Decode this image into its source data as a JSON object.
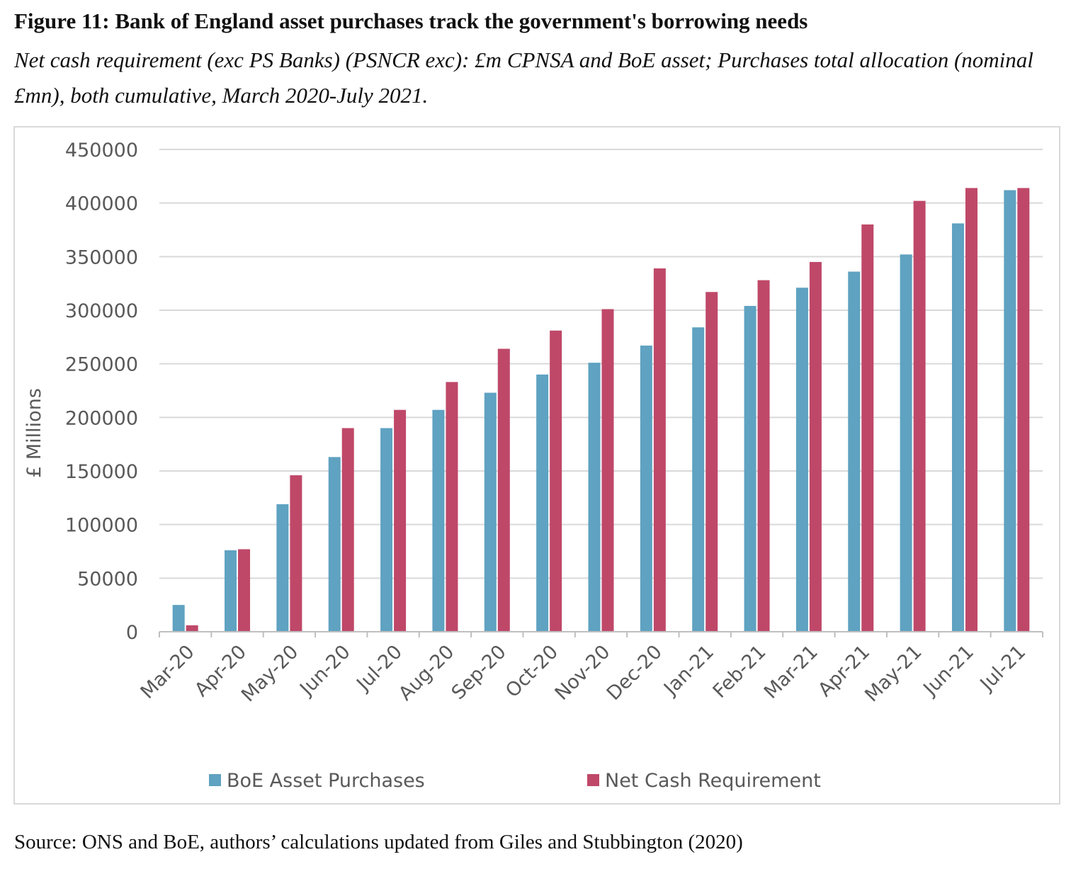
{
  "title": "Figure 11: Bank of England asset purchases track the government's borrowing needs",
  "subtitle": "Net cash requirement (exc PS Banks) (PSNCR exc): £m CPNSA and BoE asset; Purchases total allocation (nominal £mn), both cumulative, March 2020-July 2021.",
  "source": "Source: ONS and BoE, authors’ calculations updated from Giles and Stubbington (2020)",
  "chart_data": {
    "type": "bar",
    "ylabel": "£ Millions",
    "xlabel": "",
    "ylim": [
      0,
      450000
    ],
    "yticks": [
      0,
      50000,
      100000,
      150000,
      200000,
      250000,
      300000,
      350000,
      400000,
      450000
    ],
    "grid": true,
    "legend_position": "bottom",
    "categories": [
      "Mar-20",
      "Apr-20",
      "May-20",
      "Jun-20",
      "Jul-20",
      "Aug-20",
      "Sep-20",
      "Oct-20",
      "Nov-20",
      "Dec-20",
      "Jan-21",
      "Feb-21",
      "Mar-21",
      "Apr-21",
      "May-21",
      "Jun-21",
      "Jul-21"
    ],
    "series": [
      {
        "name": "BoE Asset Purchases",
        "color": "#5fa2c1",
        "values": [
          25000,
          76000,
          119000,
          163000,
          190000,
          207000,
          223000,
          240000,
          251000,
          267000,
          284000,
          304000,
          321000,
          336000,
          352000,
          381000,
          412000
        ]
      },
      {
        "name": "Net Cash Requirement",
        "color": "#bf4869",
        "values": [
          6000,
          77000,
          146000,
          190000,
          207000,
          233000,
          264000,
          281000,
          301000,
          339000,
          317000,
          328000,
          345000,
          380000,
          402000,
          414000,
          414000
        ]
      }
    ]
  }
}
